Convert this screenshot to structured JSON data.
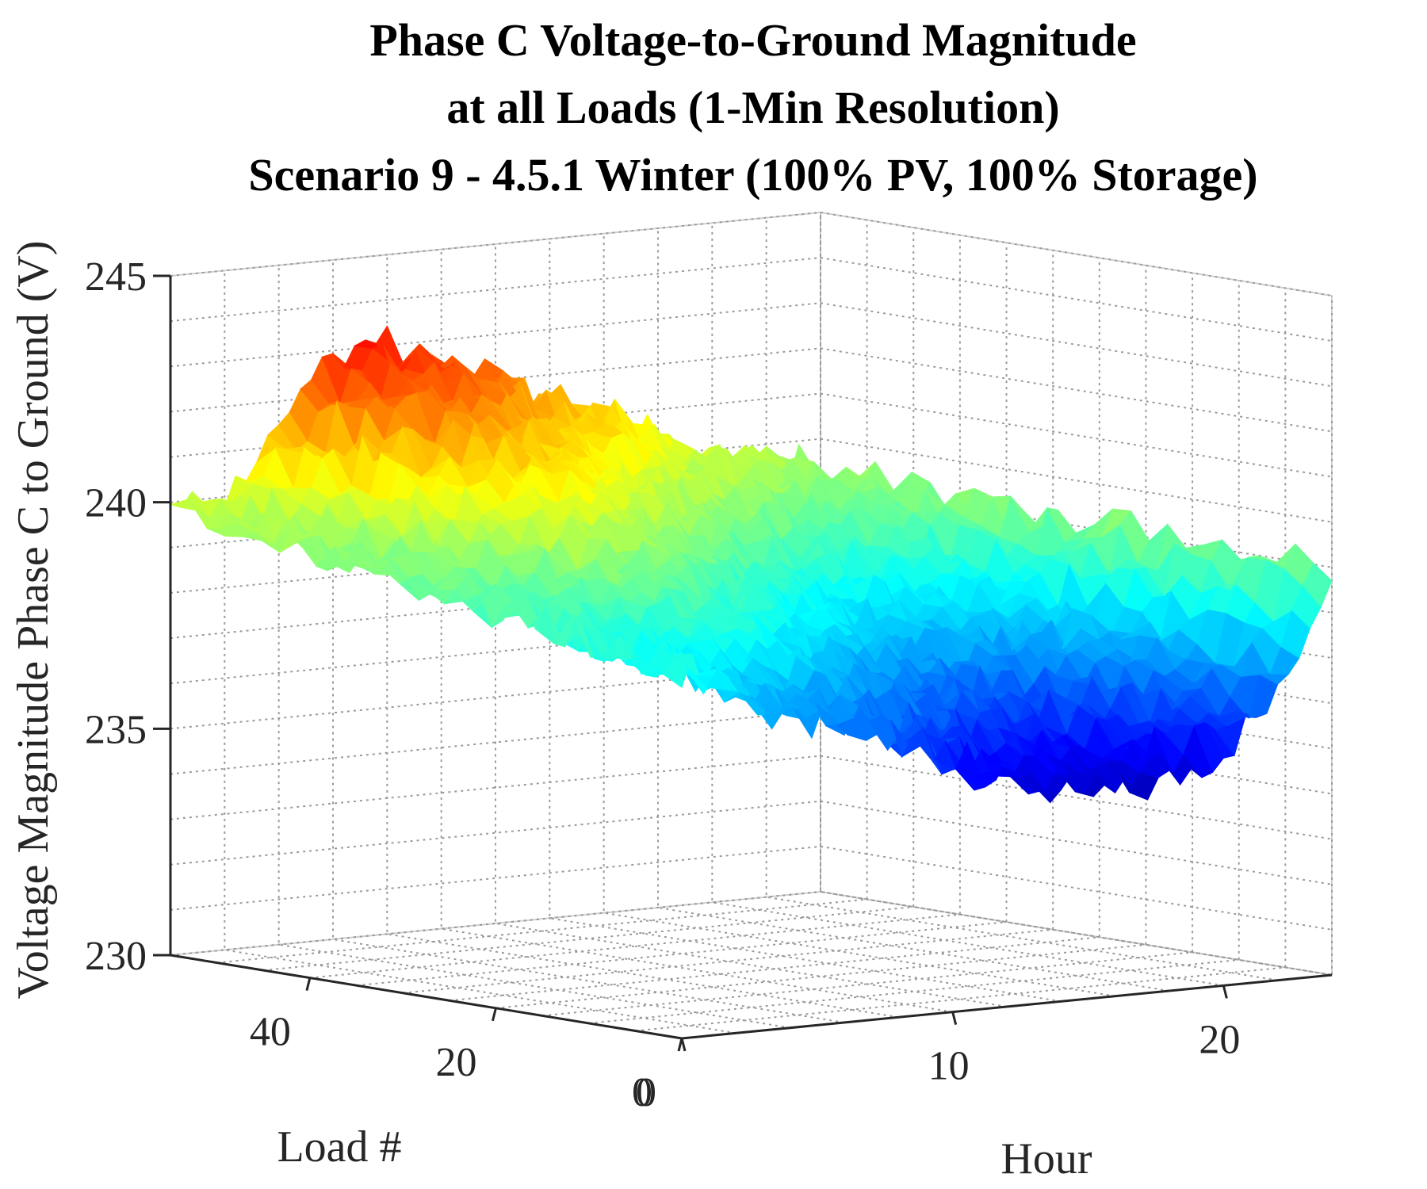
{
  "chart_data": {
    "type": "surface",
    "title": [
      "Phase C Voltage-to-Ground Magnitude",
      "at all Loads (1-Min Resolution)",
      "Scenario 9 - 4.5.1 Winter (100% PV, 100% Storage)"
    ],
    "xlabel": "Hour",
    "ylabel": "Load #",
    "zlabel": "Voltage Magnitude Phase C to Ground (V)",
    "xlim": [
      0,
      24
    ],
    "ylim": [
      0,
      55
    ],
    "zlim": [
      230,
      245
    ],
    "xticks": [
      0,
      10,
      20
    ],
    "yticks": [
      0,
      20,
      40
    ],
    "zticks": [
      230,
      235,
      240,
      245
    ],
    "grid": true,
    "colormap": "jet",
    "colors": [
      "#00008f",
      "#0000ff",
      "#0080ff",
      "#00ffff",
      "#80ff80",
      "#ffff00",
      "#ff8000",
      "#ff0000",
      "#800000"
    ],
    "hours": [
      0,
      2,
      4,
      6,
      8,
      10,
      12,
      14,
      16,
      18,
      20,
      22,
      24
    ],
    "front_load_voltage_profile": [
      238.2,
      237.6,
      236.8,
      236.4,
      236.0,
      235.5,
      235.0,
      234.6,
      234.4,
      234.6,
      235.2,
      236.2,
      239.0
    ],
    "far_load_voltage_profile": [
      239.8,
      240.0,
      241.5,
      242.8,
      243.0,
      242.6,
      242.0,
      241.5,
      241.0,
      240.4,
      240.0,
      239.6,
      239.4
    ],
    "min_voltage": 233.8,
    "max_voltage": 244.6
  }
}
